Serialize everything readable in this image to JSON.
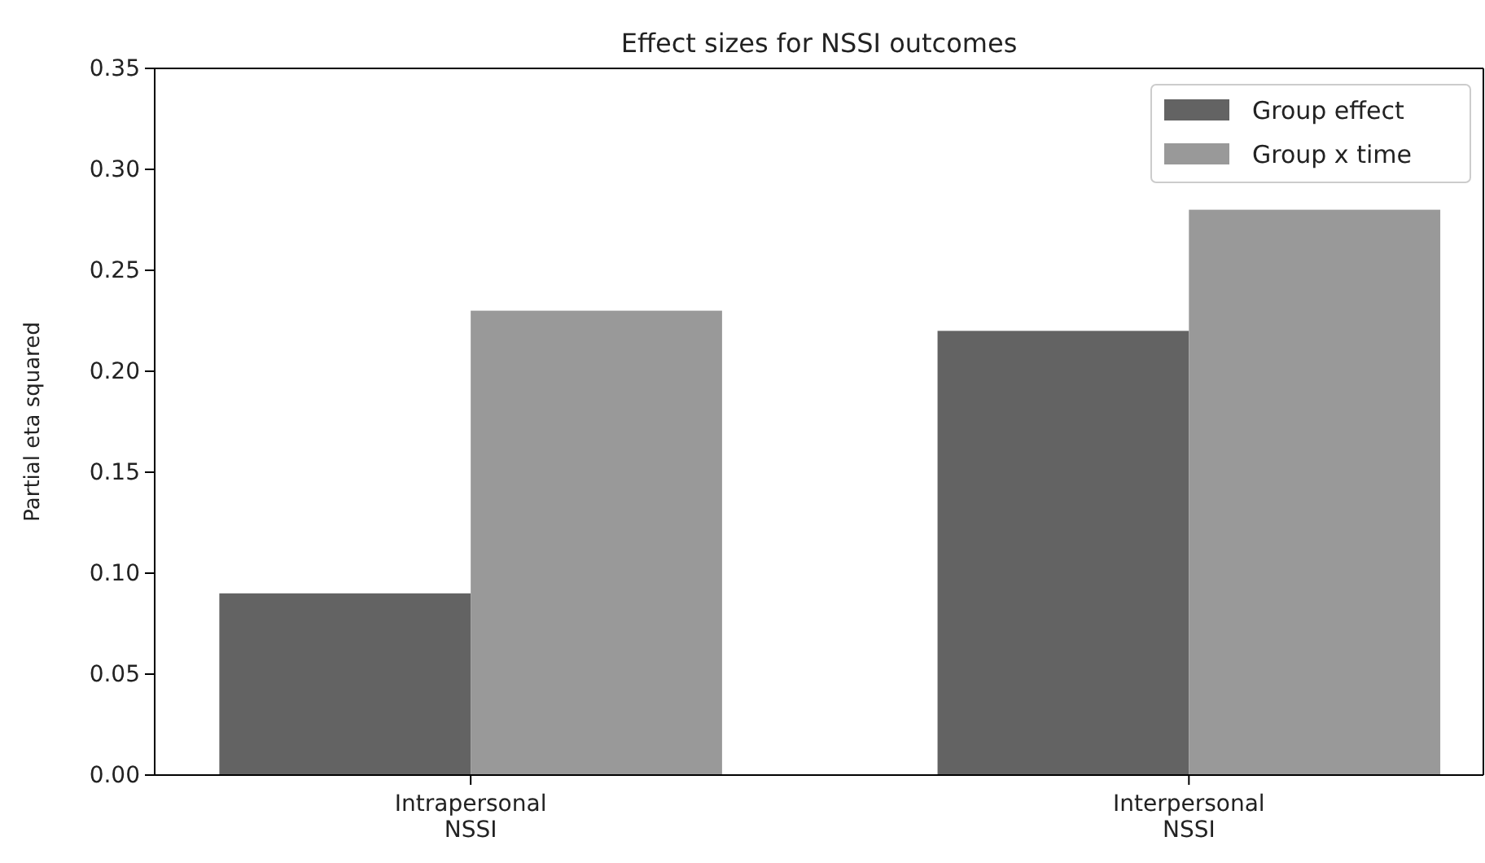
{
  "chart_data": {
    "type": "bar",
    "title": "Effect sizes for NSSI outcomes",
    "ylabel": "Partial eta squared",
    "categories": [
      "Intrapersonal\nNSSI",
      "Interpersonal\nNSSI"
    ],
    "series": [
      {
        "name": "Group effect",
        "color": "#636363",
        "values": [
          0.09,
          0.22
        ]
      },
      {
        "name": "Group x time",
        "color": "#999999",
        "values": [
          0.23,
          0.28
        ]
      }
    ],
    "ylim": [
      0,
      0.35
    ],
    "yticks": [
      {
        "value": 0,
        "label": "0.00"
      },
      0.05,
      {
        "value": 0.1,
        "label": "0.10"
      },
      0.15,
      {
        "value": 0.2,
        "label": "0.20"
      },
      0.25,
      {
        "value": 0.3,
        "label": "0.30"
      },
      0.35
    ],
    "legend": "top right"
  }
}
